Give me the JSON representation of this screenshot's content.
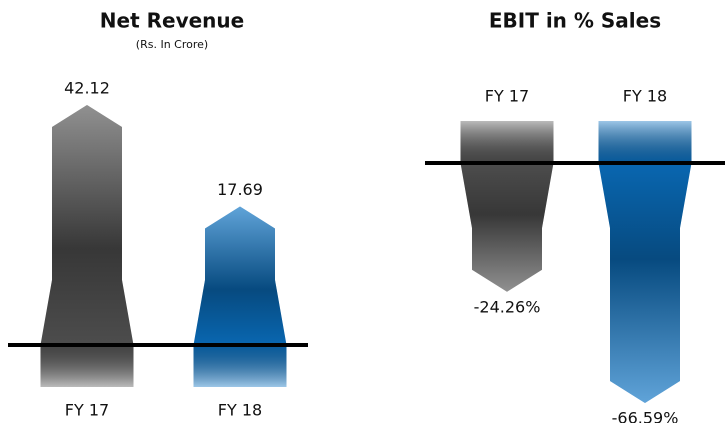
{
  "chart_data": [
    {
      "type": "bar",
      "title": "Net Revenue",
      "subtitle": "(Rs. In Crore)",
      "categories": [
        "FY 17",
        "FY 18"
      ],
      "values": [
        42.12,
        17.69
      ],
      "colors": [
        "#555555",
        "#0a72c4"
      ]
    },
    {
      "type": "bar",
      "title": "EBIT in % Sales",
      "categories": [
        "FY 17",
        "FY 18"
      ],
      "values": [
        -24.26,
        -66.59
      ],
      "value_labels": [
        "-24.26%",
        "-66.59%"
      ],
      "colors": [
        "#555555",
        "#0a72c4"
      ]
    }
  ]
}
